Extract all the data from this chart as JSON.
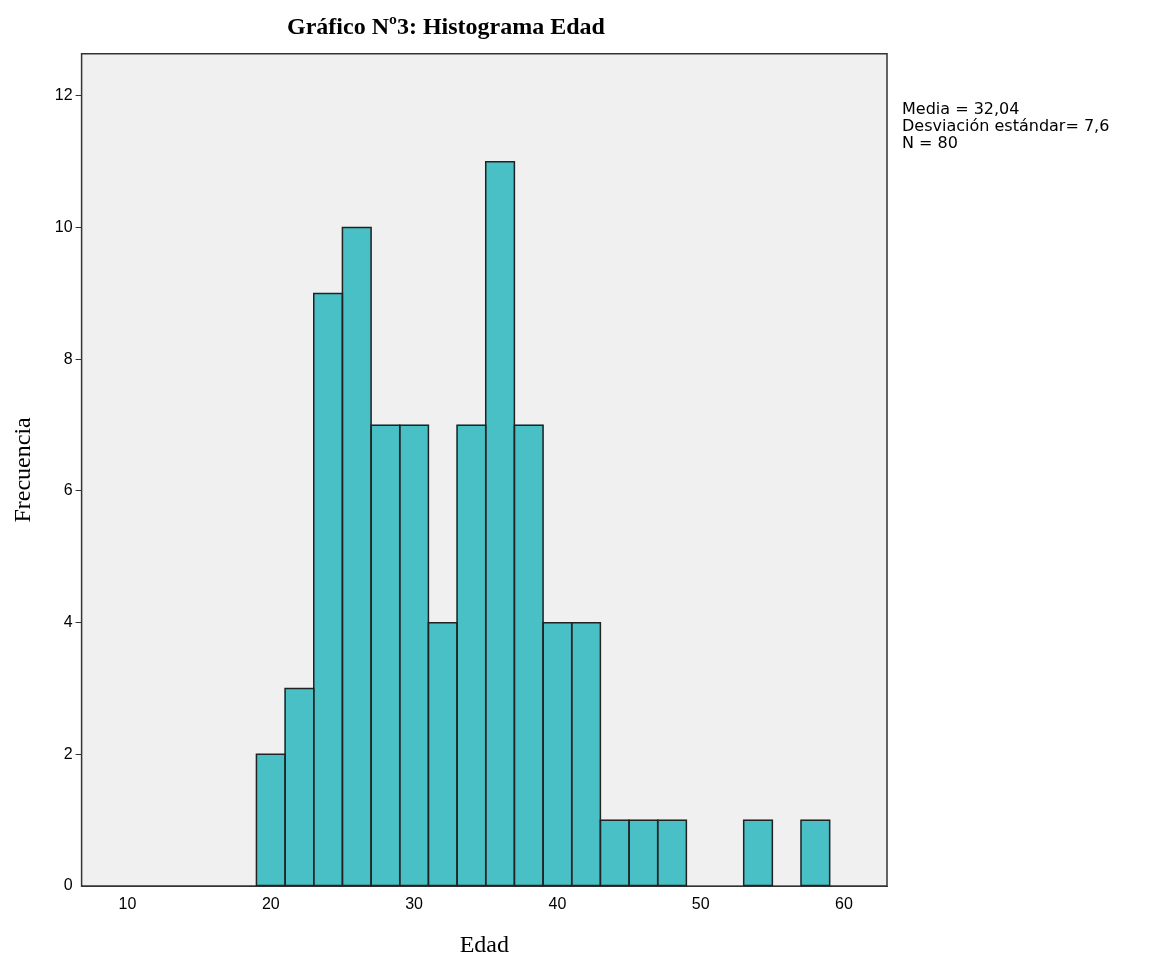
{
  "chart_data": {
    "type": "histogram",
    "title": "Gráfico Nº3: Histograma Edad",
    "xlabel": "Edad",
    "ylabel": "Frecuencia",
    "bins": [
      19,
      21,
      23,
      25,
      27,
      29,
      31,
      33,
      35,
      37,
      39,
      41,
      43,
      45,
      47,
      49,
      51,
      53,
      55,
      57,
      59
    ],
    "values": [
      2,
      3,
      9,
      10,
      7,
      7,
      4,
      7,
      11,
      7,
      4,
      4,
      1,
      1,
      1,
      0,
      0,
      1,
      0,
      1
    ],
    "color": "#48c0c6",
    "xlim": [
      6.8,
      63
    ],
    "xticks": [
      10,
      20,
      30,
      40,
      50,
      60
    ],
    "ylim": [
      0,
      12.64
    ],
    "yticks": [
      0,
      2,
      4,
      6,
      8,
      10,
      12
    ],
    "grid": false,
    "legend": false,
    "annotations": [
      "Media = 32,04",
      "Desviación estándar= 7,6",
      "N = 80"
    ]
  }
}
